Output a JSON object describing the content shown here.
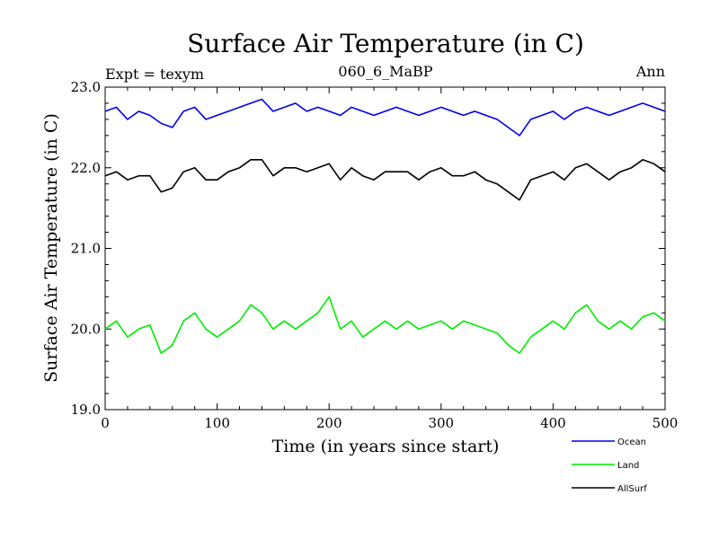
{
  "title": "Surface Air Temperature (in C)",
  "subtitle_left": "Expt = texym",
  "subtitle_center": "060_6_MaBP",
  "subtitle_right": "Ann",
  "xlabel": "Time (in years since start)",
  "ylabel": "Surface Air Temperature (in C)",
  "colors": {
    "Ocean": "#0000ee",
    "Land": "#00ee00",
    "AllSurf": "#000000"
  },
  "chart_data": {
    "type": "line",
    "title": "Surface Air Temperature (in C)",
    "xlabel": "Time (in years since start)",
    "ylabel": "Surface Air Temperature (in C)",
    "xlim": [
      0,
      500
    ],
    "ylim": [
      19.0,
      23.0
    ],
    "x_ticks": [
      0,
      100,
      200,
      300,
      400,
      500
    ],
    "y_ticks": [
      "19.0",
      "20.0",
      "21.0",
      "22.0",
      "23.0"
    ],
    "legend_position": "bottom-right, below plot",
    "grid": false,
    "x": [
      0,
      10,
      20,
      30,
      40,
      50,
      60,
      70,
      80,
      90,
      100,
      110,
      120,
      130,
      140,
      150,
      160,
      170,
      180,
      190,
      200,
      210,
      220,
      230,
      240,
      250,
      260,
      270,
      280,
      290,
      300,
      310,
      320,
      330,
      340,
      350,
      360,
      370,
      380,
      390,
      400,
      410,
      420,
      430,
      440,
      450,
      460,
      470,
      480,
      490,
      500
    ],
    "series": [
      {
        "name": "Ocean",
        "values": [
          22.7,
          22.75,
          22.6,
          22.7,
          22.65,
          22.55,
          22.5,
          22.7,
          22.75,
          22.6,
          22.65,
          22.7,
          22.75,
          22.8,
          22.85,
          22.7,
          22.75,
          22.8,
          22.7,
          22.75,
          22.7,
          22.65,
          22.75,
          22.7,
          22.65,
          22.7,
          22.75,
          22.7,
          22.65,
          22.7,
          22.75,
          22.7,
          22.65,
          22.7,
          22.65,
          22.6,
          22.5,
          22.4,
          22.6,
          22.65,
          22.7,
          22.6,
          22.7,
          22.75,
          22.7,
          22.65,
          22.7,
          22.75,
          22.8,
          22.75,
          22.7
        ]
      },
      {
        "name": "Land",
        "values": [
          20.0,
          20.1,
          19.9,
          20.0,
          20.05,
          19.7,
          19.8,
          20.1,
          20.2,
          20.0,
          19.9,
          20.0,
          20.1,
          20.3,
          20.2,
          20.0,
          20.1,
          20.0,
          20.1,
          20.2,
          20.4,
          20.0,
          20.1,
          19.9,
          20.0,
          20.1,
          20.0,
          20.1,
          20.0,
          20.05,
          20.1,
          20.0,
          20.1,
          20.05,
          20.0,
          19.95,
          19.8,
          19.7,
          19.9,
          20.0,
          20.1,
          20.0,
          20.2,
          20.3,
          20.1,
          20.0,
          20.1,
          20.0,
          20.15,
          20.2,
          20.1
        ]
      },
      {
        "name": "AllSurf",
        "values": [
          21.9,
          21.95,
          21.85,
          21.9,
          21.9,
          21.7,
          21.75,
          21.95,
          22.0,
          21.85,
          21.85,
          21.95,
          22.0,
          22.1,
          22.1,
          21.9,
          22.0,
          22.0,
          21.95,
          22.0,
          22.05,
          21.85,
          22.0,
          21.9,
          21.85,
          21.95,
          21.95,
          21.95,
          21.85,
          21.95,
          22.0,
          21.9,
          21.9,
          21.95,
          21.85,
          21.8,
          21.7,
          21.6,
          21.85,
          21.9,
          21.95,
          21.85,
          22.0,
          22.05,
          21.95,
          21.85,
          21.95,
          22.0,
          22.1,
          22.05,
          21.95
        ]
      }
    ]
  }
}
